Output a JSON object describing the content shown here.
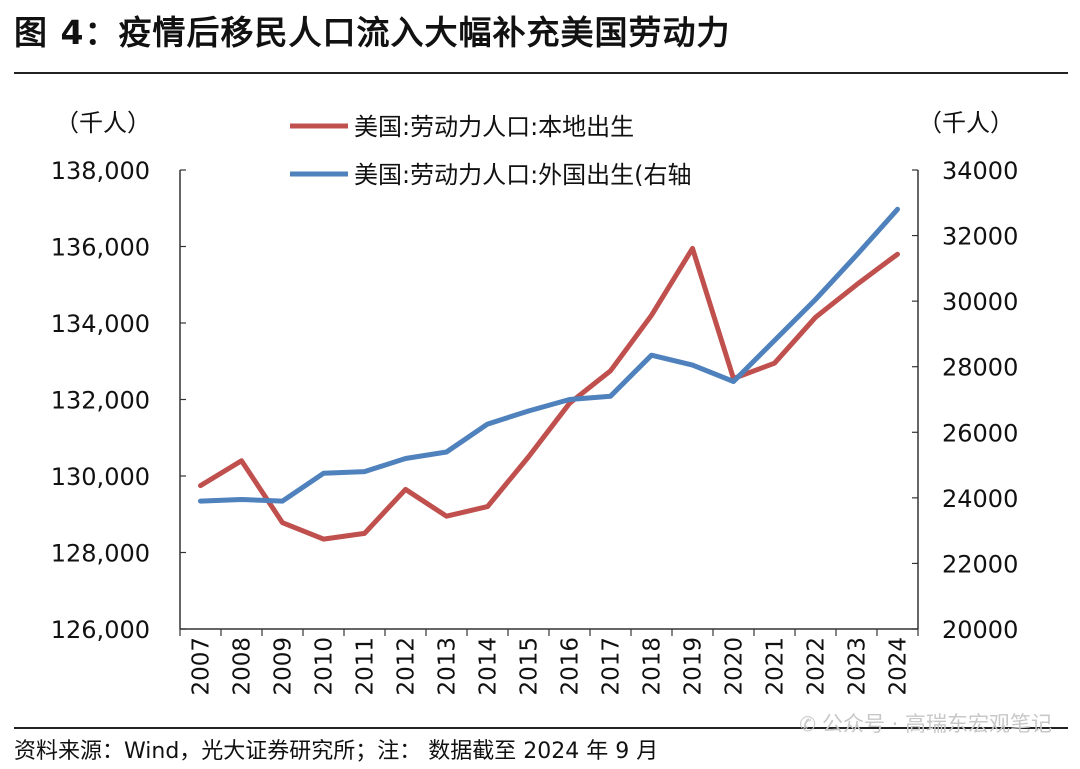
{
  "header": {
    "title": "图 4：疫情后移民人口流入大幅补充美国劳动力"
  },
  "footer": {
    "source": "资料来源：Wind，光大证券研究所；注： 数据截至 2024 年 9 月",
    "watermark": "公众号 · 高瑞东宏观笔记",
    "watermark_icon": "wechat-icon"
  },
  "chart_data": {
    "type": "line",
    "title": "",
    "x": [
      "2007",
      "2008",
      "2009",
      "2010",
      "2011",
      "2012",
      "2013",
      "2014",
      "2015",
      "2016",
      "2017",
      "2018",
      "2019",
      "2020",
      "2021",
      "2022",
      "2023",
      "2024"
    ],
    "left_axis": {
      "unit": "（千人）",
      "ylim": [
        126000,
        138000
      ],
      "ticks": [
        126000,
        128000,
        130000,
        132000,
        134000,
        136000,
        138000
      ],
      "tick_labels": [
        "126,000",
        "128,000",
        "130,000",
        "132,000",
        "134,000",
        "136,000",
        "138,000"
      ]
    },
    "right_axis": {
      "unit": "（千人）",
      "ylim": [
        20000,
        34000
      ],
      "ticks": [
        20000,
        22000,
        24000,
        26000,
        28000,
        30000,
        32000,
        34000
      ],
      "tick_labels": [
        "20000",
        "22000",
        "24000",
        "26000",
        "28000",
        "30000",
        "32000",
        "34000"
      ]
    },
    "series": [
      {
        "name": "美国:劳动力人口:本地出生",
        "axis": "left",
        "color": "#c0504d",
        "values": [
          129750,
          130400,
          128780,
          128350,
          128500,
          129650,
          128950,
          129200,
          130500,
          131900,
          132750,
          134200,
          135950,
          132550,
          132950,
          134150,
          135000,
          135800
        ]
      },
      {
        "name": "美国:劳动力人口:外国出生(右轴",
        "axis": "right",
        "color": "#4f81bd",
        "values": [
          23900,
          23950,
          23900,
          24750,
          24800,
          25200,
          25400,
          26250,
          26650,
          27000,
          27100,
          28350,
          28050,
          27550,
          28800,
          30050,
          31400,
          32800
        ]
      }
    ],
    "legend_position": "top-center",
    "grid": false
  }
}
